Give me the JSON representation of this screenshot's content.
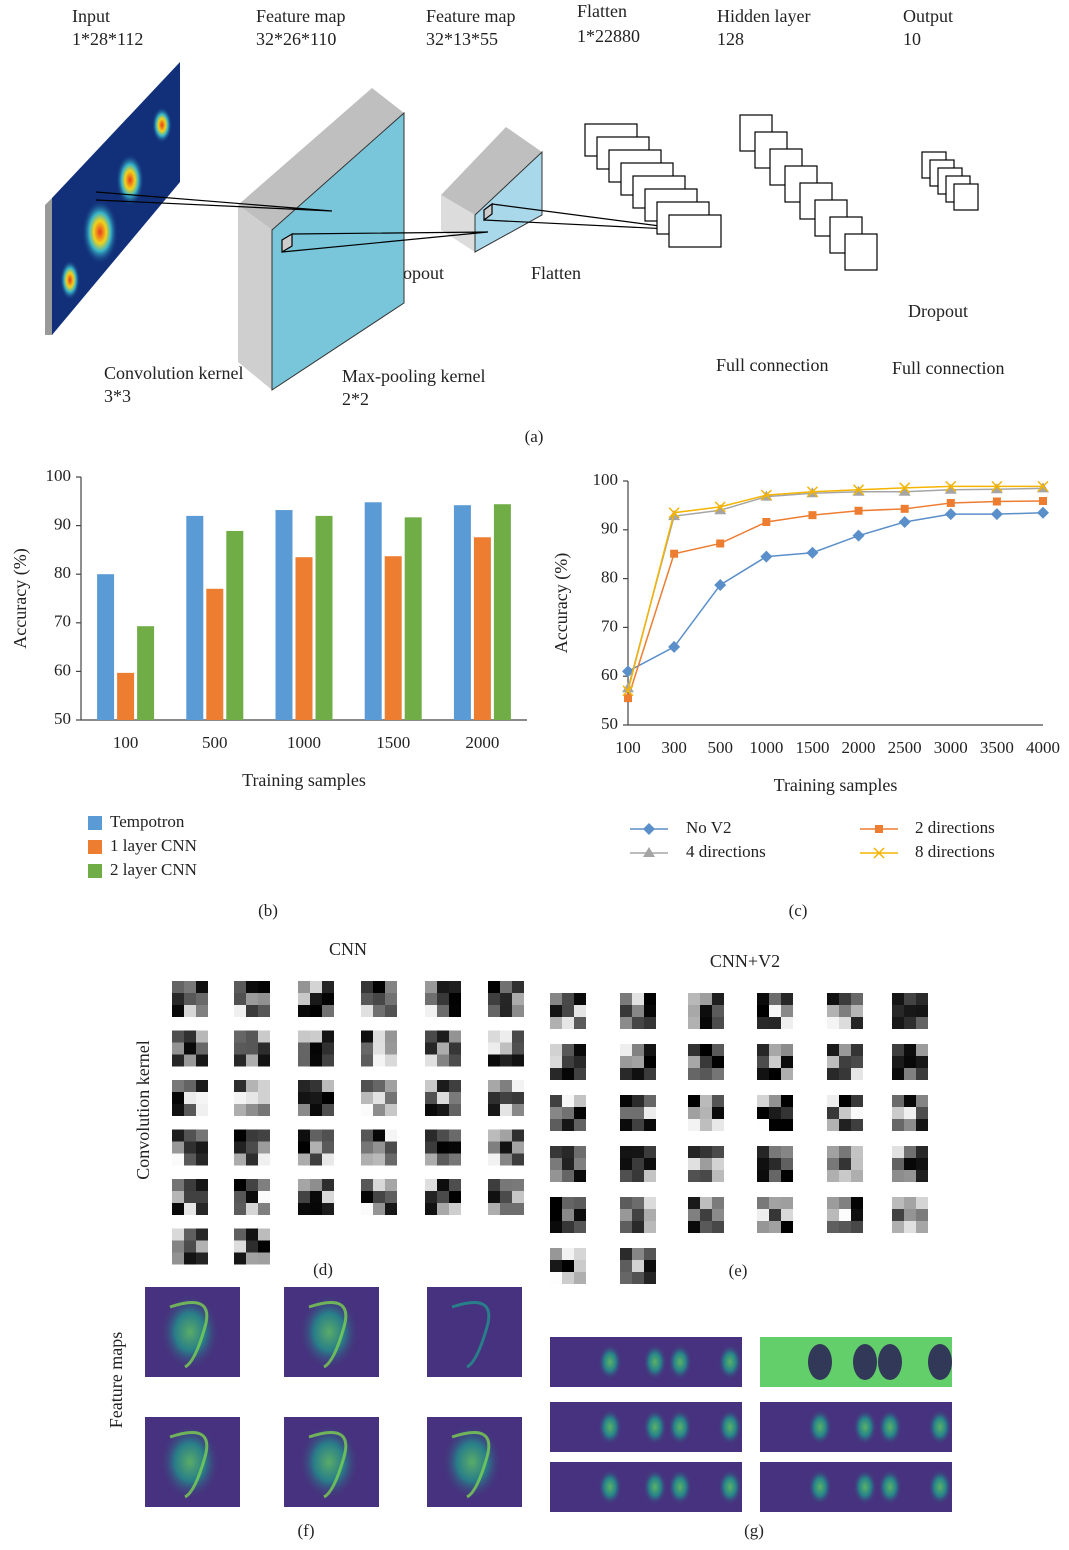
{
  "diagram": {
    "nodes": [
      {
        "title": "Input",
        "size": "1*28*112"
      },
      {
        "title": "Feature map",
        "size": "32*26*110"
      },
      {
        "title": "Feature map",
        "size": "32*13*55"
      },
      {
        "title": "Flatten",
        "size": "1*22880"
      },
      {
        "title": "Hidden layer",
        "size": "128"
      },
      {
        "title": "Output",
        "size": "10"
      }
    ],
    "operations": [
      {
        "name": "Convolution kernel",
        "size": "3*3"
      },
      {
        "name": "Max-pooling kernel",
        "size": "2*2"
      }
    ],
    "annotations": [
      "Dropout",
      "Flatten",
      "Dropout",
      "Full connection",
      "Full connection"
    ]
  },
  "chart_data": [
    {
      "type": "bar",
      "xlabel": "Training samples",
      "ylabel": "Accuracy (%)",
      "categories": [
        "100",
        "500",
        "1000",
        "1500",
        "2000"
      ],
      "series": [
        {
          "name": "Tempotron",
          "color": "#5b9bd5",
          "values": [
            80,
            92,
            93.2,
            94.8,
            94.2
          ]
        },
        {
          "name": "1 layer CNN",
          "color": "#ed7d31",
          "values": [
            59.7,
            77,
            83.5,
            83.7,
            87.6
          ]
        },
        {
          "name": "2 layer CNN",
          "color": "#70ad47",
          "values": [
            69.3,
            88.9,
            92,
            91.7,
            94.4
          ]
        }
      ],
      "ylim": [
        50,
        100
      ],
      "yticks": [
        50,
        60,
        70,
        80,
        90,
        100
      ],
      "grid": false,
      "legend": "bottom-left"
    },
    {
      "type": "line",
      "xlabel": "Training samples",
      "ylabel": "Accuracy (%)",
      "categories": [
        "100",
        "300",
        "500",
        "1000",
        "1500",
        "2000",
        "2500",
        "3000",
        "3500",
        "4000"
      ],
      "series": [
        {
          "name": "No V2",
          "color": "#5b8fc9",
          "marker": "diamond",
          "values": [
            61,
            66,
            78.7,
            84.5,
            85.3,
            88.8,
            91.6,
            93.2,
            93.2,
            93.5
          ]
        },
        {
          "name": "2 directions",
          "color": "#ed7d31",
          "marker": "square",
          "values": [
            55.5,
            85.1,
            87.2,
            91.6,
            93,
            93.9,
            94.3,
            95.5,
            95.8,
            95.9
          ]
        },
        {
          "name": "4 directions",
          "color": "#a5a5a5",
          "marker": "triangle",
          "values": [
            57.5,
            92.8,
            94,
            96.8,
            97.5,
            97.8,
            97.8,
            98.2,
            98.3,
            98.5
          ]
        },
        {
          "name": "8 directions",
          "color": "#f5b400",
          "marker": "x",
          "values": [
            57,
            93.5,
            94.7,
            97.1,
            97.8,
            98.2,
            98.6,
            98.9,
            98.9,
            98.9
          ]
        }
      ],
      "ylim": [
        50,
        100
      ],
      "yticks": [
        50,
        60,
        70,
        80,
        90,
        100
      ],
      "grid": false,
      "legend": "bottom"
    }
  ],
  "kernels": {
    "cnn_title": "CNN",
    "cnn_v2_title": "CNN+V2",
    "axis_label": "Convolution kernel"
  },
  "feature_maps": {
    "axis_label": "Feature maps"
  },
  "panel_labels": [
    "(a)",
    "(b)",
    "(c)",
    "(d)",
    "(e)",
    "(f)",
    "(g)"
  ]
}
